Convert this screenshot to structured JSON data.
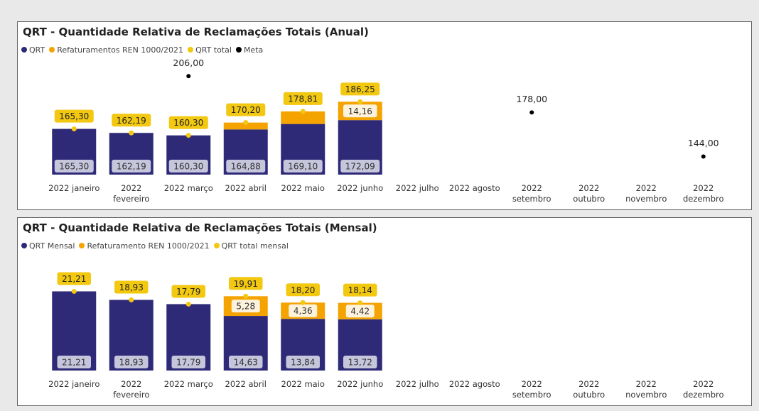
{
  "chart_data": [
    {
      "type": "bar",
      "title": "QRT - Quantidade Relativa de Reclamações Totais (Anual)",
      "categories": [
        "2022 janeiro",
        "2022 fevereiro",
        "2022 março",
        "2022 abril",
        "2022 maio",
        "2022 junho",
        "2022 julho",
        "2022 agosto",
        "2022 setembro",
        "2022 outubro",
        "2022 novembro",
        "2022 dezembro"
      ],
      "ylim": [
        130,
        210
      ],
      "series": [
        {
          "name": "QRT",
          "color": "#2e2a78",
          "type": "bar",
          "values": [
            165.3,
            162.19,
            160.3,
            164.88,
            169.1,
            172.09,
            null,
            null,
            null,
            null,
            null,
            null
          ],
          "value_labels": [
            "165,30",
            "162,19",
            "160,30",
            "164,88",
            "169,10",
            "172,09",
            null,
            null,
            null,
            null,
            null,
            null
          ]
        },
        {
          "name": "Refaturamentos REN 1000/2021",
          "color": "#f5a300",
          "type": "bar",
          "values": [
            null,
            null,
            null,
            5.32,
            9.71,
            14.16,
            null,
            null,
            null,
            null,
            null,
            null
          ],
          "value_labels": [
            null,
            null,
            null,
            null,
            null,
            "14,16",
            null,
            null,
            null,
            null,
            null,
            null
          ]
        },
        {
          "name": "QRT total",
          "color": "#f2c811",
          "type": "point",
          "values": [
            165.3,
            162.19,
            160.3,
            170.2,
            178.81,
            186.25,
            null,
            null,
            null,
            null,
            null,
            null
          ],
          "value_labels": [
            "165,30",
            "162,19",
            "160,30",
            "170,20",
            "178,81",
            "186,25",
            null,
            null,
            null,
            null,
            null,
            null
          ]
        },
        {
          "name": "Meta",
          "color": "#000000",
          "type": "point",
          "values": [
            null,
            null,
            206.0,
            null,
            null,
            null,
            null,
            null,
            178.0,
            null,
            null,
            144.0
          ],
          "value_labels": [
            null,
            null,
            "206,00",
            null,
            null,
            null,
            null,
            null,
            "178,00",
            null,
            null,
            "144,00"
          ]
        }
      ]
    },
    {
      "type": "bar",
      "title": "QRT - Quantidade Relativa de Reclamações Totais (Mensal)",
      "categories": [
        "2022 janeiro",
        "2022 fevereiro",
        "2022 março",
        "2022 abril",
        "2022 maio",
        "2022 junho",
        "2022 julho",
        "2022 agosto",
        "2022 setembro",
        "2022 outubro",
        "2022 novembro",
        "2022 dezembro"
      ],
      "ylim": [
        0,
        27
      ],
      "series": [
        {
          "name": "QRT Mensal",
          "color": "#2e2a78",
          "type": "bar",
          "values": [
            21.21,
            18.93,
            17.79,
            14.63,
            13.84,
            13.72,
            null,
            null,
            null,
            null,
            null,
            null
          ],
          "value_labels": [
            "21,21",
            "18,93",
            "17,79",
            "14,63",
            "13,84",
            "13,72",
            null,
            null,
            null,
            null,
            null,
            null
          ]
        },
        {
          "name": "Refaturamento REN 1000/2021",
          "color": "#f5a300",
          "type": "bar",
          "values": [
            null,
            null,
            null,
            5.28,
            4.36,
            4.42,
            null,
            null,
            null,
            null,
            null,
            null
          ],
          "value_labels": [
            null,
            null,
            null,
            "5,28",
            "4,36",
            "4,42",
            null,
            null,
            null,
            null,
            null,
            null
          ]
        },
        {
          "name": "QRT total mensal",
          "color": "#f2c811",
          "type": "point",
          "values": [
            21.21,
            18.93,
            17.79,
            19.91,
            18.2,
            18.14,
            null,
            null,
            null,
            null,
            null,
            null
          ],
          "value_labels": [
            "21,21",
            "18,93",
            "17,79",
            "19,91",
            "18,20",
            "18,14",
            null,
            null,
            null,
            null,
            null,
            null
          ]
        }
      ]
    }
  ]
}
